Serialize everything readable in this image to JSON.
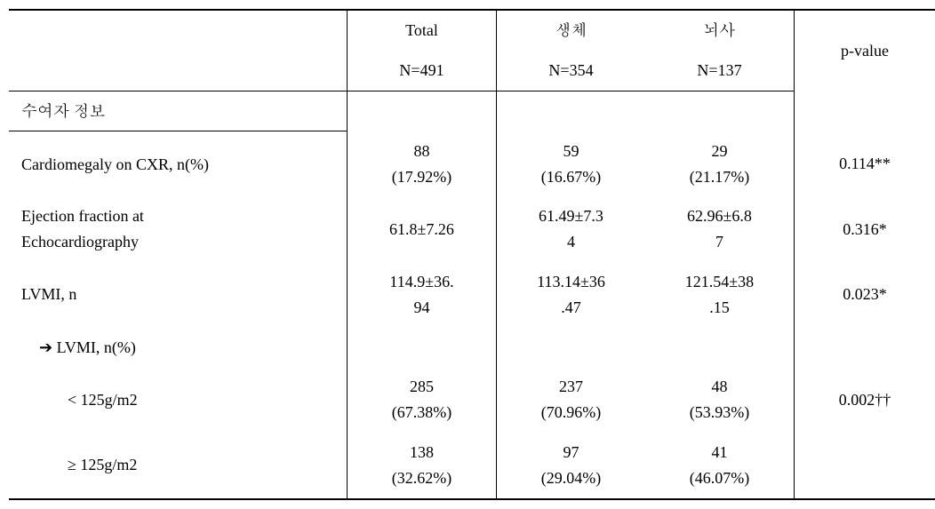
{
  "header": {
    "blank": "",
    "total_label": "Total",
    "total_n": "N=491",
    "groupA_label": "생체",
    "groupA_n": "N=354",
    "groupB_label": "뇌사",
    "groupB_n": "N=137",
    "pvalue_label": "p-value"
  },
  "section_title": "수여자 정보",
  "rows": [
    {
      "label": "Cardiomegaly on CXR, n(%)",
      "total_line1": "88",
      "total_line2": "(17.92%)",
      "a_line1": "59",
      "a_line2": "(16.67%)",
      "b_line1": "29",
      "b_line2": "(21.17%)",
      "p": "0.114**"
    },
    {
      "label_line1": "Ejection fraction at",
      "label_line2": "Echocardiography",
      "total_line1": "61.8±7.26",
      "total_line2": "",
      "a_line1": "61.49±7.3",
      "a_line2": "4",
      "b_line1": "62.96±6.8",
      "b_line2": "7",
      "p": "0.316*"
    },
    {
      "label": "LVMI, n",
      "total_line1": "114.9±36.",
      "total_line2": "94",
      "a_line1": "113.14±36",
      "a_line2": ".47",
      "b_line1": "121.54±38",
      "b_line2": ".15",
      "p": "0.023*"
    }
  ],
  "sub_header": "➔ LVMI, n(%)",
  "subrows": [
    {
      "label": "< 125g/m2",
      "total_line1": "285",
      "total_line2": "(67.38%)",
      "a_line1": "237",
      "a_line2": "(70.96%)",
      "b_line1": "48",
      "b_line2": "(53.93%)",
      "p": "0.002††"
    },
    {
      "label": "≥ 125g/m2",
      "total_line1": "138",
      "total_line2": "(32.62%)",
      "a_line1": "97",
      "a_line2": "(29.04%)",
      "b_line1": "41",
      "b_line2": "(46.07%)",
      "p": ""
    }
  ]
}
